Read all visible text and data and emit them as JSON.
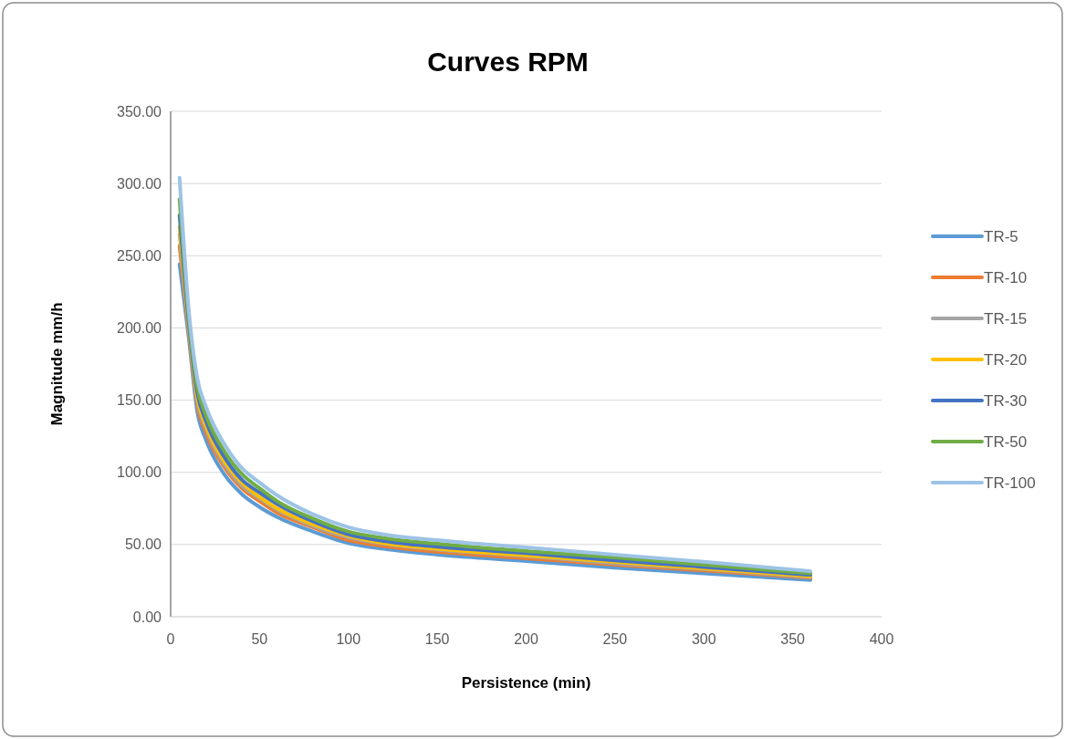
{
  "chart_data": {
    "type": "line",
    "title": "Curves RPM",
    "xlabel": "Persistence (min)",
    "ylabel": "Magnitude mm/h",
    "x": [
      5,
      10,
      15,
      20,
      30,
      40,
      50,
      60,
      80,
      100,
      120,
      150,
      200,
      250,
      300,
      360
    ],
    "xlim": [
      0,
      400
    ],
    "xticks": [
      0,
      50,
      100,
      150,
      200,
      250,
      300,
      350,
      400
    ],
    "ylim": [
      0,
      350
    ],
    "yticks": [
      {
        "value": 0,
        "label": "0.00"
      },
      {
        "value": 50,
        "label": "50.00"
      },
      {
        "value": 100,
        "label": "100.00"
      },
      {
        "value": 150,
        "label": "150.00"
      },
      {
        "value": 200,
        "label": "200.00"
      },
      {
        "value": 250,
        "label": "250.00"
      },
      {
        "value": 300,
        "label": "300.00"
      },
      {
        "value": 350,
        "label": "350.00"
      }
    ],
    "grid": "y",
    "legend": "right",
    "marker": "none",
    "line_style": "solid",
    "series": [
      {
        "name": "TR-5",
        "color": "#5b9bd5",
        "values": [
          244,
          195,
          142,
          122,
          99,
          85,
          76,
          69,
          59,
          51,
          47,
          43,
          38.5,
          34,
          30,
          25.5
        ]
      },
      {
        "name": "TR-10",
        "color": "#ed7d31",
        "values": [
          257,
          199,
          147,
          127,
          104,
          89,
          80,
          72,
          62,
          53,
          49,
          45,
          40.5,
          36,
          32,
          27
        ]
      },
      {
        "name": "TR-15",
        "color": "#a5a5a5",
        "values": [
          265,
          202,
          150,
          130,
          106,
          91,
          82,
          74,
          63,
          55,
          50.5,
          46.5,
          42,
          37,
          33,
          27.5
        ]
      },
      {
        "name": "TR-20",
        "color": "#ffc000",
        "values": [
          270,
          204,
          152,
          132,
          108,
          93,
          83,
          75,
          64,
          56,
          51,
          47,
          42.5,
          38,
          33.5,
          28
        ]
      },
      {
        "name": "TR-30",
        "color": "#4472c4",
        "values": [
          278,
          206,
          155,
          135,
          111,
          95,
          86,
          78,
          66,
          57,
          52.5,
          48.5,
          44,
          39,
          34.5,
          29
        ]
      },
      {
        "name": "TR-50",
        "color": "#70ad47",
        "values": [
          289,
          210,
          159,
          139,
          115,
          99,
          89,
          80,
          68,
          59,
          54.5,
          50.5,
          45.5,
          41,
          36,
          30
        ]
      },
      {
        "name": "TR-100",
        "color": "#9dc3e6",
        "values": [
          304,
          215,
          165,
          145,
          120,
          103,
          93,
          84,
          71,
          62,
          57,
          53,
          48,
          43,
          38,
          31.5
        ]
      }
    ]
  }
}
